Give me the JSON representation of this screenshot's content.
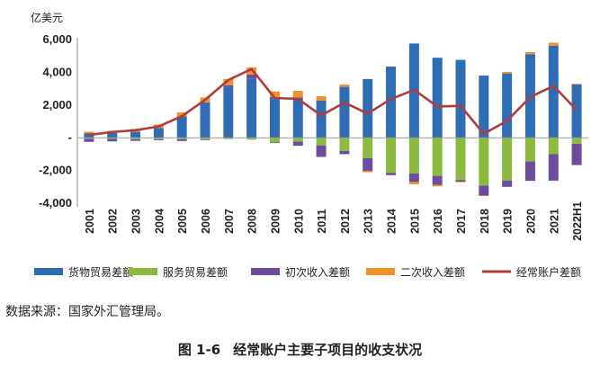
{
  "figure": {
    "number": "图 1-6",
    "caption": "经常账户主要子项目的收支状况",
    "source": "数据来源：国家外汇管理局。"
  },
  "chart_data": {
    "type": "bar",
    "stacked": true,
    "unit_label": "亿美元",
    "ylim": [
      -4000,
      6000
    ],
    "yticks": [
      -4000,
      -2000,
      0,
      2000,
      4000,
      6000
    ],
    "ytick_labels": [
      "-4,000",
      "-2,000",
      "-",
      "2,000",
      "4,000",
      "6,000"
    ],
    "categories": [
      "2001",
      "2002",
      "2003",
      "2004",
      "2005",
      "2006",
      "2007",
      "2008",
      "2009",
      "2010",
      "2011",
      "2012",
      "2013",
      "2014",
      "2015",
      "2016",
      "2017",
      "2018",
      "2019",
      "2020",
      "2021",
      "2022H1"
    ],
    "series": [
      {
        "name": "货物贸易差额",
        "kind": "bar",
        "color": "#2e6db4",
        "values": [
          280,
          300,
          360,
          590,
          1300,
          2170,
          3120,
          3600,
          2490,
          2460,
          2280,
          3110,
          3590,
          4350,
          5760,
          4890,
          4760,
          3800,
          3930,
          5110,
          5630,
          3260
        ]
      },
      {
        "name": "服务贸易差额",
        "kind": "bar",
        "color": "#8cba3f",
        "values": [
          -60,
          -70,
          -90,
          -100,
          -90,
          -90,
          -80,
          -120,
          -290,
          -230,
          -470,
          -800,
          -1240,
          -2140,
          -2180,
          -2330,
          -2580,
          -2920,
          -2610,
          -1450,
          -1000,
          -370
        ]
      },
      {
        "name": "初次收入差额",
        "kind": "bar",
        "color": "#6c4c9f",
        "values": [
          -190,
          -150,
          -100,
          -50,
          -110,
          -50,
          80,
          270,
          -10,
          -260,
          -700,
          -200,
          -780,
          -130,
          -520,
          -550,
          -100,
          -610,
          -390,
          -1180,
          -1620,
          -1300
        ]
      },
      {
        "name": "二次收入差额",
        "kind": "bar",
        "color": "#f0922a",
        "values": [
          90,
          130,
          180,
          230,
          250,
          290,
          390,
          430,
          340,
          410,
          260,
          140,
          -90,
          -30,
          -140,
          -90,
          -40,
          -30,
          100,
          120,
          180,
          40
        ]
      },
      {
        "name": "经常账户差额",
        "kind": "line",
        "color": "#b33a3a",
        "values": [
          170,
          350,
          460,
          690,
          1320,
          2320,
          3530,
          4200,
          2430,
          2380,
          1360,
          2150,
          1480,
          2360,
          2930,
          1910,
          1950,
          240,
          1030,
          2490,
          3170,
          1690
        ]
      }
    ]
  }
}
